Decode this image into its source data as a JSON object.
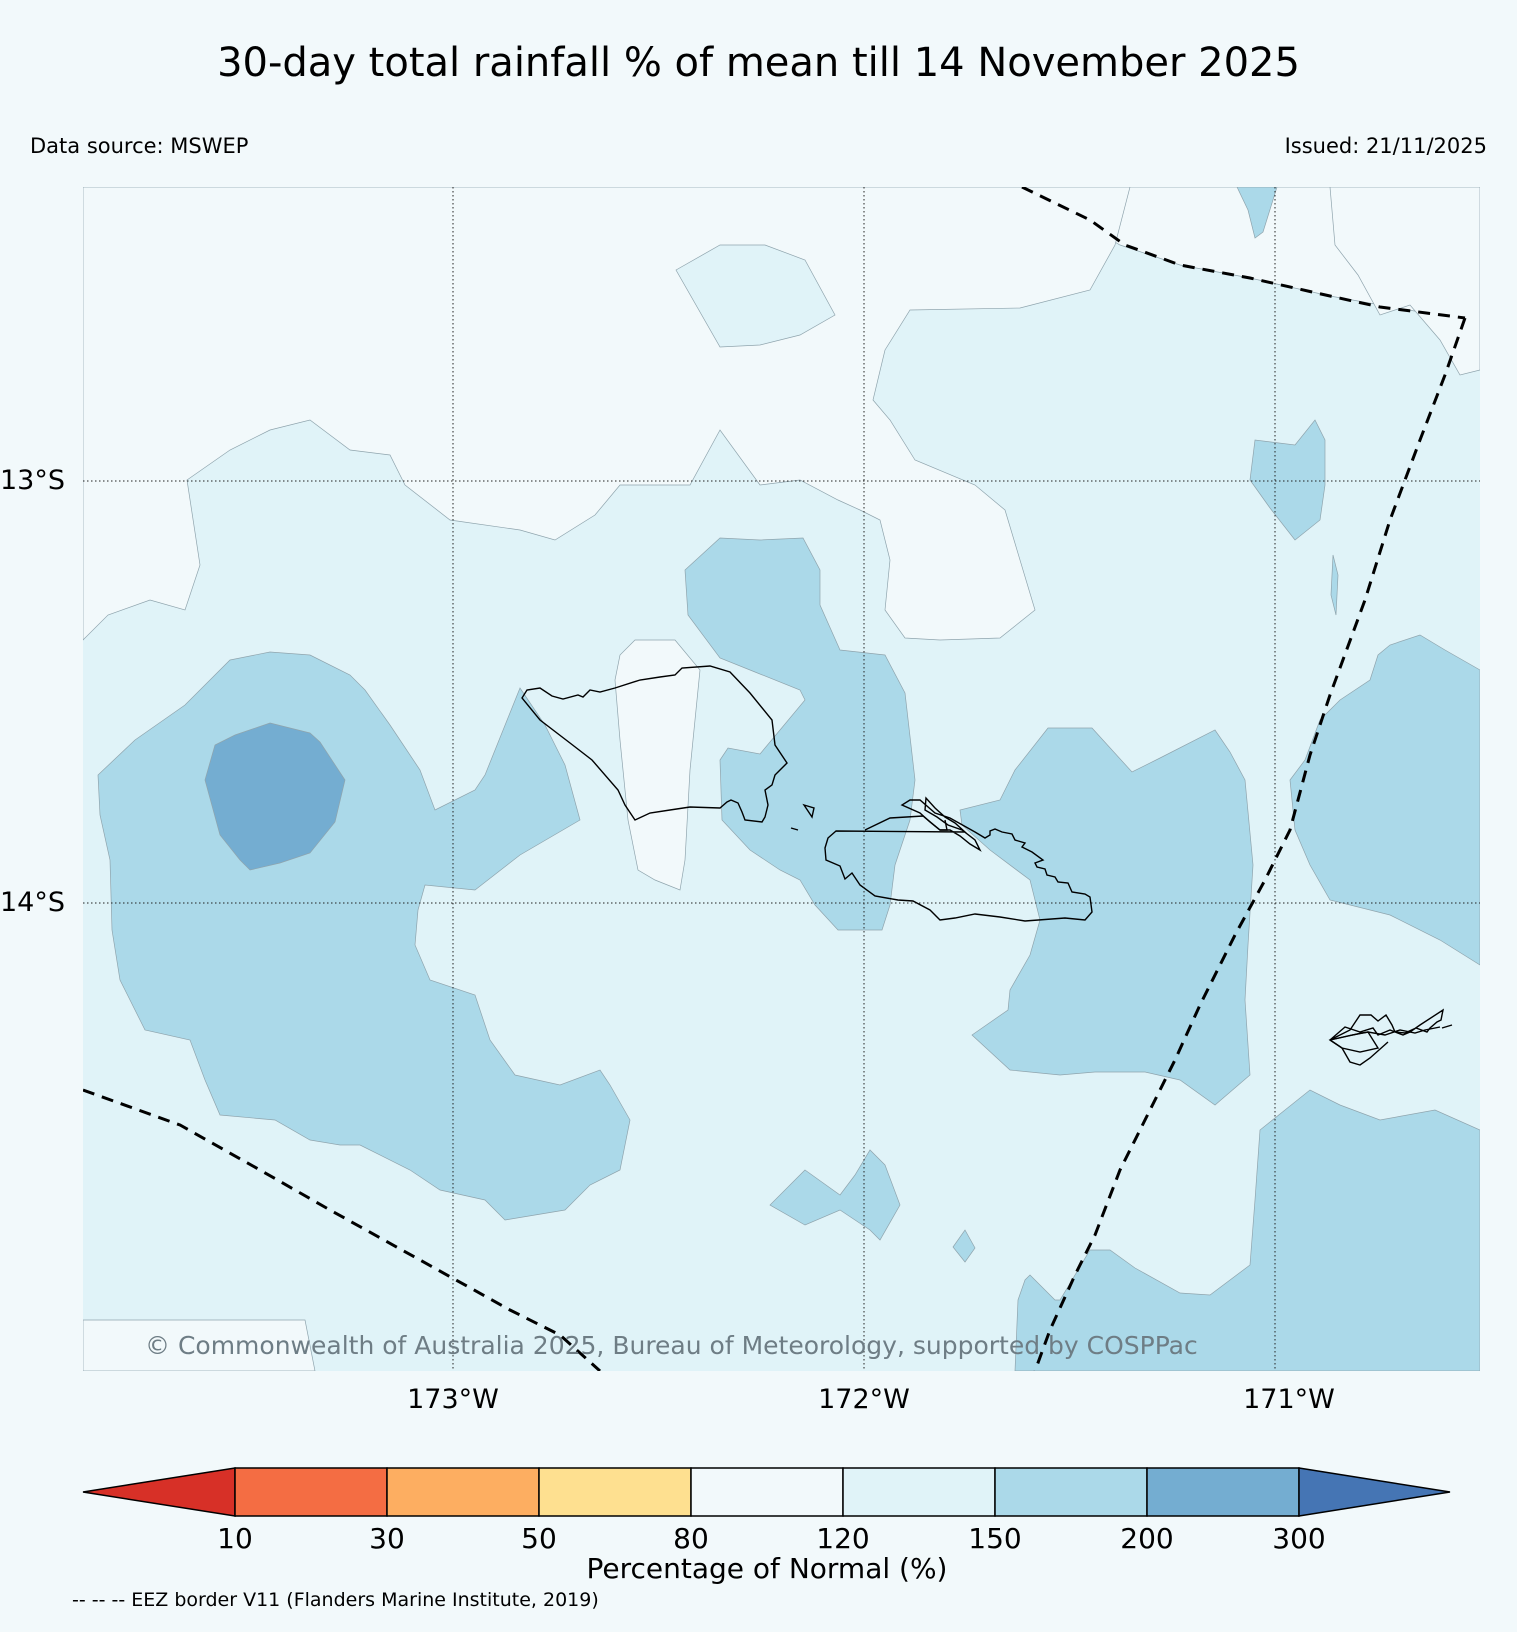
{
  "title": "30-day total rainfall % of mean till 14 November 2025",
  "data_source": "Data source: MSWEP",
  "issued": "Issued: 21/11/2025",
  "copyright": "© Commonwealth of Australia 2025, Bureau of Meteorology, supported by COSPPac",
  "footnote": "-- -- -- EEZ border V11 (Flanders Marine Institute, 2019)",
  "map": {
    "lat_labels": [
      "13°S",
      "14°S"
    ],
    "lon_labels": [
      "173°W",
      "172°W",
      "171°W"
    ]
  },
  "colorbar": {
    "label": "Percentage of Normal (%)",
    "ticks": [
      "10",
      "30",
      "50",
      "80",
      "120",
      "150",
      "200",
      "300"
    ],
    "colors": [
      "#d73027",
      "#f46d43",
      "#fdae61",
      "#fee090",
      "#f2f9fb",
      "#e0f3f8",
      "#abd9e9",
      "#74add1",
      "#4575b4"
    ]
  },
  "legend_colors": {
    "c120_150": "#e0f3f8",
    "c150_200": "#abd9e9",
    "c200_300": "#74add1",
    "below_120": "#f2f9fb"
  }
}
